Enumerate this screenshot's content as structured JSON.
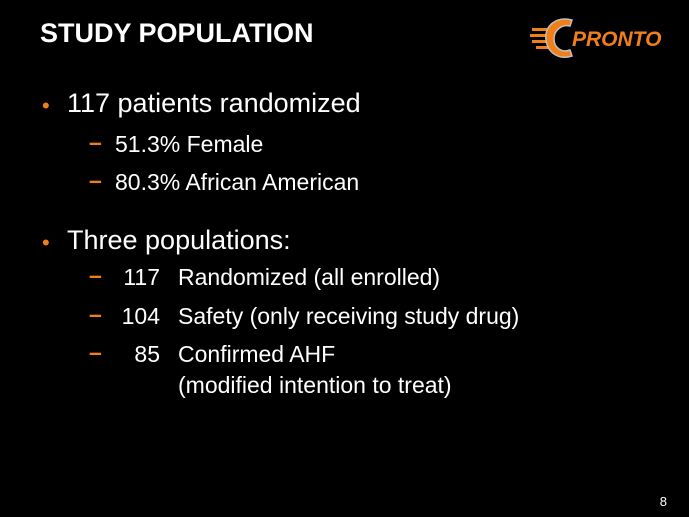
{
  "header": {
    "title": "STUDY POPULATION",
    "logo": "PRONTO"
  },
  "bullets": [
    {
      "text": "117 patients randomized",
      "items": [
        "51.3% Female",
        "80.3% African American"
      ]
    },
    {
      "text": "Three populations:",
      "items": [
        {
          "count": "117",
          "description": [
            "Randomized (all enrolled)"
          ]
        },
        {
          "count": "104",
          "description": [
            "Safety (only receiving study drug)"
          ]
        },
        {
          "count": "85",
          "description": [
            "Confirmed AHF",
            "(modified intention to treat)"
          ]
        }
      ]
    }
  ],
  "footer": {
    "page_number": "8"
  }
}
